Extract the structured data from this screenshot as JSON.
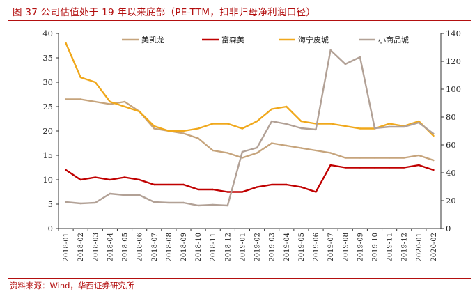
{
  "header": {
    "title": "图 37    公司估值处于 19 年以来底部（PE-TTM，扣非归母净利润口径）"
  },
  "footer": {
    "source": "资料来源：Wind，华西证券研究所"
  },
  "chart_data": {
    "type": "line",
    "title": "公司估值处于 19 年以来底部（PE-TTM，扣非归母净利润口径）",
    "figure_label": "图 37",
    "categories": [
      "2018-01",
      "2018-02",
      "2018-03",
      "2018-04",
      "2018-05",
      "2018-06",
      "2018-07",
      "2018-08",
      "2018-09",
      "2018-10",
      "2018-11",
      "2018-12",
      "2019-01",
      "2019-02",
      "2019-03",
      "2019-04",
      "2019-05",
      "2019-06",
      "2019-07",
      "2019-08",
      "2019-09",
      "2019-10",
      "2019-11",
      "2019-12",
      "2020-01",
      "2020-02"
    ],
    "y_left": {
      "min": 0,
      "max": 40,
      "ticks": [
        "0",
        "5",
        "10",
        "15",
        "20",
        "25",
        "30",
        "35",
        "40"
      ]
    },
    "y_right": {
      "min": 0,
      "max": 140,
      "ticks": [
        "0",
        "20",
        "40",
        "60",
        "80",
        "100",
        "120",
        "140"
      ]
    },
    "legend_position": "top",
    "series": [
      {
        "name": "美凯龙",
        "axis": "left",
        "color": "#c6a47c",
        "values": [
          26.5,
          26.5,
          26.0,
          25.5,
          26.0,
          24.0,
          20.5,
          20.0,
          19.5,
          18.5,
          16.0,
          15.5,
          14.5,
          15.5,
          17.5,
          17.0,
          16.5,
          16.0,
          15.5,
          14.5,
          14.5,
          14.5,
          14.5,
          14.5,
          15.0,
          14.0
        ]
      },
      {
        "name": "富森美",
        "axis": "left",
        "color": "#c00000",
        "values": [
          12.0,
          10.0,
          10.5,
          10.0,
          10.5,
          10.0,
          9.0,
          9.0,
          9.0,
          8.0,
          8.0,
          7.5,
          7.5,
          8.5,
          9.0,
          9.0,
          8.5,
          7.5,
          13.0,
          12.5,
          12.5,
          12.5,
          12.5,
          12.5,
          13.0,
          12.0
        ]
      },
      {
        "name": "海宁皮城",
        "axis": "left",
        "color": "#f0a81c",
        "values": [
          38.0,
          31.0,
          30.0,
          26.0,
          25.0,
          24.0,
          21.0,
          20.0,
          20.0,
          20.5,
          21.5,
          21.5,
          20.5,
          22.0,
          24.5,
          25.0,
          22.0,
          21.5,
          21.5,
          21.0,
          20.5,
          20.5,
          21.5,
          21.0,
          22.0,
          19.0
        ]
      },
      {
        "name": "小商品城",
        "axis": "right",
        "color": "#b2a196",
        "values": [
          19.0,
          18.0,
          18.5,
          25.0,
          24.0,
          24.0,
          19.0,
          18.5,
          18.5,
          16.5,
          17.0,
          16.5,
          55.0,
          58.0,
          77.0,
          75.0,
          72.0,
          71.0,
          128.0,
          118.0,
          123.0,
          72.0,
          73.0,
          73.0,
          76.0,
          68.0
        ]
      }
    ]
  }
}
